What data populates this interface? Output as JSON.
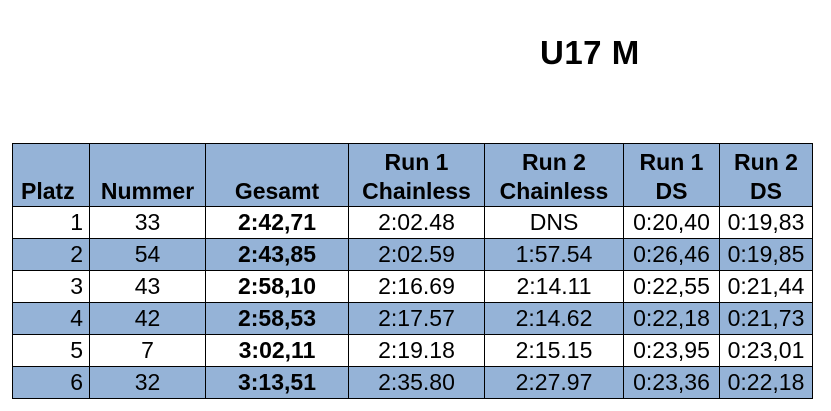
{
  "title": "U17 M",
  "table": {
    "headers": {
      "platz": "Platz",
      "nummer": "Nummer",
      "gesamt": "Gesamt",
      "run1_chainless_l1": "Run 1",
      "run1_chainless_l2": "Chainless",
      "run2_chainless_l1": "Run 2",
      "run2_chainless_l2": "Chainless",
      "run1_ds_l1": "Run 1",
      "run1_ds_l2": "DS",
      "run2_ds_l1": "Run 2",
      "run2_ds_l2": "DS"
    },
    "rows": [
      {
        "platz": "1",
        "nummer": "33",
        "gesamt": "2:42,71",
        "run1_chainless": "2:02.48",
        "run2_chainless": "DNS",
        "run1_ds": "0:20,40",
        "run2_ds": "0:19,83"
      },
      {
        "platz": "2",
        "nummer": "54",
        "gesamt": "2:43,85",
        "run1_chainless": "2:02.59",
        "run2_chainless": "1:57.54",
        "run1_ds": "0:26,46",
        "run2_ds": "0:19,85"
      },
      {
        "platz": "3",
        "nummer": "43",
        "gesamt": "2:58,10",
        "run1_chainless": "2:16.69",
        "run2_chainless": "2:14.11",
        "run1_ds": "0:22,55",
        "run2_ds": "0:21,44"
      },
      {
        "platz": "4",
        "nummer": "42",
        "gesamt": "2:58,53",
        "run1_chainless": "2:17.57",
        "run2_chainless": "2:14.62",
        "run1_ds": "0:22,18",
        "run2_ds": "0:21,73"
      },
      {
        "platz": "5",
        "nummer": "7",
        "gesamt": "3:02,11",
        "run1_chainless": "2:19.18",
        "run2_chainless": "2:15.15",
        "run1_ds": "0:23,95",
        "run2_ds": "0:23,01"
      },
      {
        "platz": "6",
        "nummer": "32",
        "gesamt": "3:13,51",
        "run1_chainless": "2:35.80",
        "run2_chainless": "2:27.97",
        "run1_ds": "0:23,36",
        "run2_ds": "0:22,18"
      }
    ]
  },
  "colors": {
    "header_fill": "#95b3d7",
    "alt_row_fill": "#95b3d7",
    "border": "#000000"
  }
}
